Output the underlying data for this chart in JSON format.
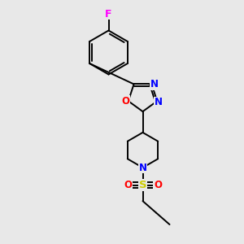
{
  "background_color": "#e8e8e8",
  "bond_color": "#000000",
  "atom_colors": {
    "F": "#ff00ff",
    "O": "#ff0000",
    "N": "#0000ff",
    "S": "#cccc00",
    "C": "#000000"
  },
  "figsize": [
    3.0,
    3.0
  ],
  "dpi": 100,
  "xlim": [
    0,
    10
  ],
  "ylim": [
    0,
    10
  ]
}
